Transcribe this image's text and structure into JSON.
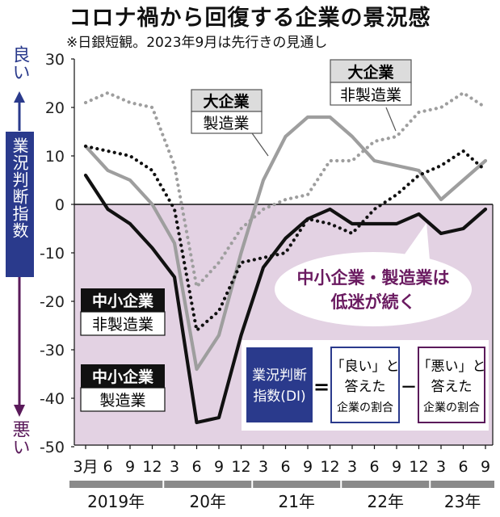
{
  "title": "コロナ禍から回復する企業の景況感",
  "subtitle": "※日銀短観。2023年9月は先行きの見通し",
  "axis": {
    "good_label": "良い",
    "bad_label": "悪い",
    "ylabel": "業況判断指数"
  },
  "formula": {
    "lhs": "業況判断指数(DI)",
    "equals": "=",
    "term1_line1": "「良い」と",
    "term1_line2": "答えた",
    "term1_line3": "企業の割合",
    "minus": "－",
    "term2_line1": "「悪い」と",
    "term2_line2": "答えた",
    "term2_line3": "企業の割合"
  },
  "callout": {
    "line1": "中小企業・製造業は",
    "line2": "低迷が続く"
  },
  "colors": {
    "negative_region": "#e3d2e3",
    "formula_box": "#2a3a8c",
    "callout_text": "#6a1a60",
    "good_arrow": "#2a3a8c",
    "bad_arrow": "#5a1a5a",
    "year_bar": "#8a8a8a"
  },
  "chart_data": {
    "type": "line",
    "ylim": [
      -50,
      30
    ],
    "yticks": [
      30,
      20,
      10,
      0,
      -10,
      -20,
      -30,
      -40,
      -50
    ],
    "x": [
      "2019-03",
      "2019-06",
      "2019-09",
      "2019-12",
      "2020-03",
      "2020-06",
      "2020-09",
      "2020-12",
      "2021-03",
      "2021-06",
      "2021-09",
      "2021-12",
      "2022-03",
      "2022-06",
      "2022-09",
      "2022-12",
      "2023-03",
      "2023-06",
      "2023-09"
    ],
    "xtick_labels": [
      "3月",
      "6",
      "9",
      "12",
      "3",
      "6",
      "9",
      "12",
      "3",
      "6",
      "9",
      "12",
      "3",
      "6",
      "9",
      "12",
      "3",
      "6",
      "9"
    ],
    "year_labels": [
      "2019年",
      "20年",
      "21年",
      "22年",
      "23年"
    ],
    "series": [
      {
        "name": "大企業 製造業",
        "label_line1": "大企業",
        "label_line2": "製造業",
        "style": "solid",
        "color": "#9e9e9e",
        "values": [
          12,
          7,
          5,
          0,
          -8,
          -34,
          -27,
          -10,
          5,
          14,
          18,
          18,
          14,
          9,
          8,
          7,
          1,
          5,
          9
        ]
      },
      {
        "name": "大企業 非製造業",
        "label_line1": "大企業",
        "label_line2": "非製造業",
        "style": "dotted",
        "color": "#9e9e9e",
        "values": [
          21,
          23,
          21,
          20,
          8,
          -17,
          -12,
          -5,
          -1,
          1,
          2,
          9,
          9,
          13,
          14,
          19,
          20,
          23,
          20
        ]
      },
      {
        "name": "中小企業 非製造業",
        "label_line1": "中小企業",
        "label_line2": "非製造業",
        "style": "dotted",
        "color": "#111111",
        "values": [
          12,
          11,
          10,
          7,
          -1,
          -26,
          -22,
          -12,
          -11,
          -10,
          -3,
          -4,
          -6,
          -1,
          2,
          6,
          8,
          11,
          7
        ]
      },
      {
        "name": "中小企業 製造業",
        "label_line1": "中小企業",
        "label_line2": "製造業",
        "style": "solid",
        "color": "#111111",
        "values": [
          6,
          -1,
          -4,
          -9,
          -15,
          -45,
          -44,
          -27,
          -13,
          -7,
          -3,
          -1,
          -4,
          -4,
          -4,
          -2,
          -6,
          -5,
          -1
        ]
      }
    ]
  }
}
